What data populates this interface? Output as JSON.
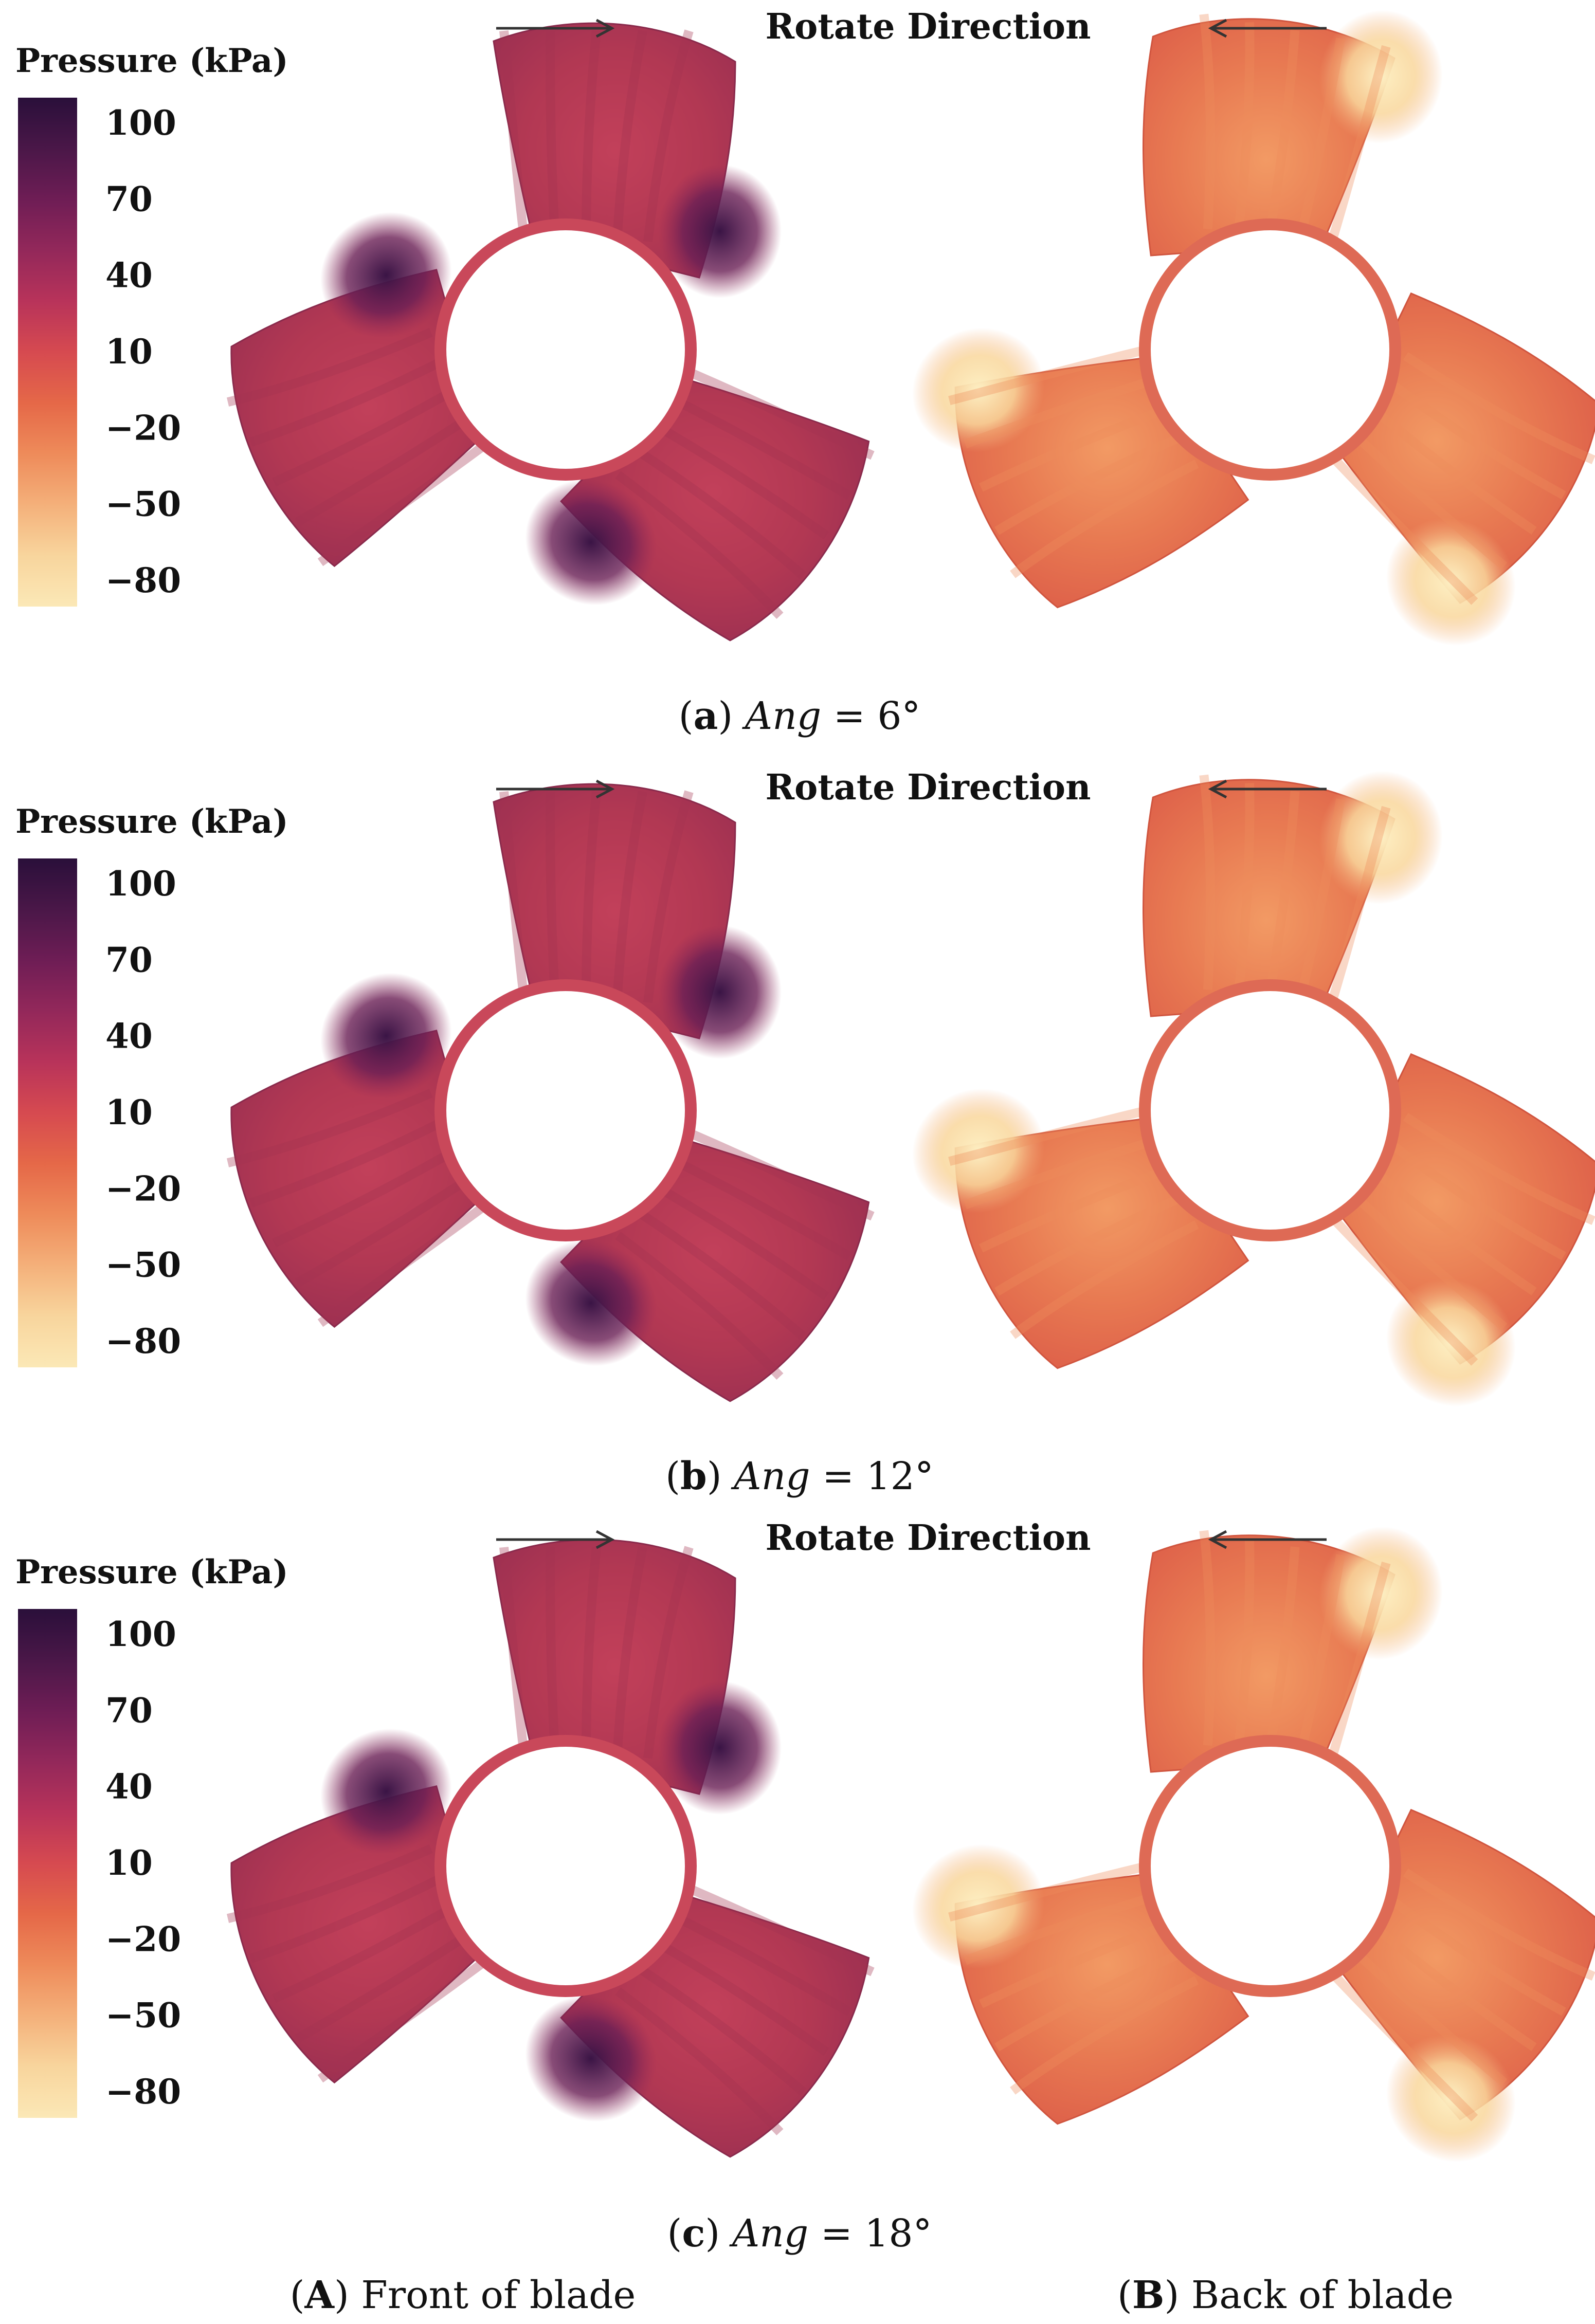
{
  "figure": {
    "legend": {
      "title": "Pressure (kPa)",
      "ticks": [
        "100",
        "70",
        "40",
        "10",
        "−20",
        "−50",
        "−80"
      ],
      "colors": [
        "#2a0f3a",
        "#4a1748",
        "#6e1d55",
        "#93285a",
        "#b8335a",
        "#d64a50",
        "#e56848",
        "#ee8b5a",
        "#f4b07a",
        "#f8d59d",
        "#fbe8b6"
      ]
    },
    "rotate_label": "Rotate Direction",
    "panels": [
      {
        "id": "a",
        "caption_letter": "a",
        "caption_var": "Ang",
        "caption_rest": " = 6°"
      },
      {
        "id": "b",
        "caption_letter": "b",
        "caption_var": "Ang",
        "caption_rest": " = 12°"
      },
      {
        "id": "c",
        "caption_letter": "c",
        "caption_var": "Ang",
        "caption_rest": " = 18°"
      }
    ],
    "bottom_captions": {
      "front": {
        "letter": "A",
        "text": " Front of blade"
      },
      "back": {
        "letter": "B",
        "text": " Back of blade"
      }
    },
    "colors": {
      "front_base": "#b83a55",
      "front_mid": "#a8324f",
      "front_dark": "#4a1a4a",
      "back_base": "#e8754f",
      "back_mid": "#f09a62",
      "back_light": "#fbe3b0",
      "hub_front": "#c9485a",
      "hub_back": "#de6a55"
    }
  }
}
